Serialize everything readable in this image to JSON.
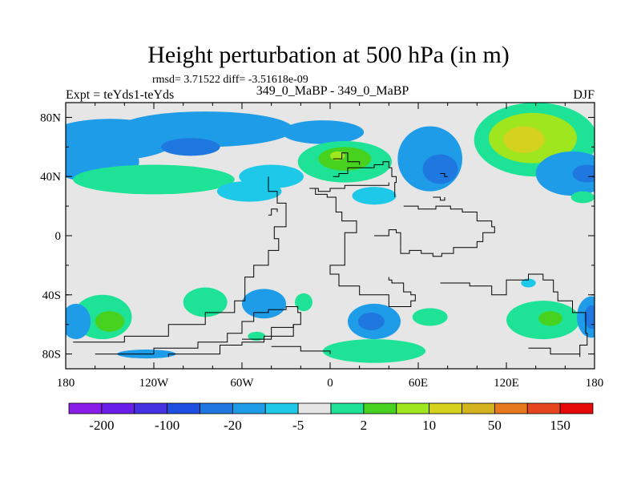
{
  "chart_data": {
    "type": "heatmap",
    "title": "Height perturbation at 500 hPa (in m)",
    "stats_line": "rmsd= 3.71522 diff= -3.51618e-09",
    "left_label": "Expt = teYds1-teYds",
    "center_label": "349_0_MaBP - 349_0_MaBP",
    "right_label": "DJF",
    "xlim": [
      -180,
      180
    ],
    "ylim": [
      -90,
      90
    ],
    "x_ticks": [
      {
        "value": -180,
        "label": "180"
      },
      {
        "value": -120,
        "label": "120W"
      },
      {
        "value": -60,
        "label": "60W"
      },
      {
        "value": 0,
        "label": "0"
      },
      {
        "value": 60,
        "label": "60E"
      },
      {
        "value": 120,
        "label": "120E"
      },
      {
        "value": 180,
        "label": "180"
      }
    ],
    "y_ticks": [
      {
        "value": 80,
        "label": "80N"
      },
      {
        "value": 40,
        "label": "40N"
      },
      {
        "value": 0,
        "label": "0"
      },
      {
        "value": -40,
        "label": "40S"
      },
      {
        "value": -80,
        "label": "80S"
      }
    ],
    "colorbar": {
      "colors": [
        "#8a1ee8",
        "#6a1fe8",
        "#4632e0",
        "#1f4fe0",
        "#1e78e0",
        "#1e9ce8",
        "#1ec8e8",
        "#e6e6e6",
        "#1ee396",
        "#46d21e",
        "#a0e61e",
        "#d4d21e",
        "#d4b41e",
        "#e6781e",
        "#e6461e",
        "#e60a0a"
      ],
      "labels": [
        {
          "boundary": 1,
          "label": "-200"
        },
        {
          "boundary": 3,
          "label": "-100"
        },
        {
          "boundary": 5,
          "label": "-20"
        },
        {
          "boundary": 7,
          "label": "-5"
        },
        {
          "boundary": 9,
          "label": "2"
        },
        {
          "boundary": 11,
          "label": "10"
        },
        {
          "boundary": 13,
          "label": "50"
        },
        {
          "boundary": 15,
          "label": "150"
        }
      ]
    },
    "background_level": "#e6e6e6",
    "anomalies": [
      {
        "lon": -150,
        "lat": 65,
        "rx": 45,
        "ry": 14,
        "level": 5
      },
      {
        "lon": -160,
        "lat": 50,
        "rx": 30,
        "ry": 14,
        "level": 5
      },
      {
        "lon": -120,
        "lat": 38,
        "rx": 55,
        "ry": 10,
        "level": 8
      },
      {
        "lon": -40,
        "lat": 40,
        "rx": 22,
        "ry": 8,
        "level": 6
      },
      {
        "lon": -85,
        "lat": 72,
        "rx": 60,
        "ry": 12,
        "level": 5
      },
      {
        "lon": -95,
        "lat": 60,
        "rx": 20,
        "ry": 6,
        "level": 4
      },
      {
        "lon": -5,
        "lat": 70,
        "rx": 28,
        "ry": 8,
        "level": 5
      },
      {
        "lon": 10,
        "lat": 50,
        "rx": 32,
        "ry": 14,
        "level": 8
      },
      {
        "lon": 10,
        "lat": 52,
        "rx": 18,
        "ry": 8,
        "level": 9
      },
      {
        "lon": 5,
        "lat": 54,
        "rx": 5,
        "ry": 3,
        "level": 10
      },
      {
        "lon": -55,
        "lat": 30,
        "rx": 22,
        "ry": 7,
        "level": 6
      },
      {
        "lon": 30,
        "lat": 27,
        "rx": 15,
        "ry": 6,
        "level": 6
      },
      {
        "lon": 68,
        "lat": 52,
        "rx": 22,
        "ry": 22,
        "level": 5
      },
      {
        "lon": 75,
        "lat": 45,
        "rx": 12,
        "ry": 10,
        "level": 4
      },
      {
        "lon": 140,
        "lat": 65,
        "rx": 42,
        "ry": 25,
        "level": 8
      },
      {
        "lon": 138,
        "lat": 66,
        "rx": 30,
        "ry": 17,
        "level": 10
      },
      {
        "lon": 132,
        "lat": 65,
        "rx": 14,
        "ry": 9,
        "level": 11
      },
      {
        "lon": 165,
        "lat": 42,
        "rx": 25,
        "ry": 15,
        "level": 5
      },
      {
        "lon": 175,
        "lat": 42,
        "rx": 10,
        "ry": 6,
        "level": 4
      },
      {
        "lon": 172,
        "lat": 26,
        "rx": 8,
        "ry": 4,
        "level": 8
      },
      {
        "lon": -155,
        "lat": -55,
        "rx": 20,
        "ry": 15,
        "level": 8
      },
      {
        "lon": -150,
        "lat": -58,
        "rx": 10,
        "ry": 7,
        "level": 9
      },
      {
        "lon": -173,
        "lat": -58,
        "rx": 10,
        "ry": 12,
        "level": 5
      },
      {
        "lon": -85,
        "lat": -45,
        "rx": 15,
        "ry": 10,
        "level": 8
      },
      {
        "lon": -125,
        "lat": -80,
        "rx": 20,
        "ry": 3,
        "level": 5
      },
      {
        "lon": -45,
        "lat": -46,
        "rx": 15,
        "ry": 10,
        "level": 5
      },
      {
        "lon": -50,
        "lat": -68,
        "rx": 6,
        "ry": 3,
        "level": 8
      },
      {
        "lon": -18,
        "lat": -45,
        "rx": 6,
        "ry": 6,
        "level": 8
      },
      {
        "lon": 30,
        "lat": -58,
        "rx": 18,
        "ry": 12,
        "level": 5
      },
      {
        "lon": 28,
        "lat": -58,
        "rx": 9,
        "ry": 6,
        "level": 4
      },
      {
        "lon": 30,
        "lat": -78,
        "rx": 35,
        "ry": 8,
        "level": 8
      },
      {
        "lon": 68,
        "lat": -55,
        "rx": 12,
        "ry": 6,
        "level": 8
      },
      {
        "lon": 135,
        "lat": -32,
        "rx": 5,
        "ry": 3,
        "level": 6
      },
      {
        "lon": 145,
        "lat": -57,
        "rx": 25,
        "ry": 13,
        "level": 8
      },
      {
        "lon": 150,
        "lat": -56,
        "rx": 8,
        "ry": 5,
        "level": 9
      },
      {
        "lon": 178,
        "lat": -55,
        "rx": 10,
        "ry": 14,
        "level": 5
      },
      {
        "lon": 178,
        "lat": -55,
        "rx": 5,
        "ry": 8,
        "level": 4
      }
    ],
    "boundaries": [
      [
        [
          -175,
          -72
        ],
        [
          -140,
          -68
        ],
        [
          -110,
          -60
        ],
        [
          -85,
          -52
        ],
        [
          -65,
          -44
        ],
        [
          -58,
          -36
        ],
        [
          -58,
          -28
        ],
        [
          -52,
          -20
        ],
        [
          -42,
          -10
        ],
        [
          -35,
          -2
        ],
        [
          -38,
          6
        ],
        [
          -30,
          12
        ],
        [
          -30,
          22
        ],
        [
          -36,
          30
        ],
        [
          -42,
          40
        ]
      ],
      [
        [
          -160,
          -80
        ],
        [
          -120,
          -76
        ],
        [
          -90,
          -72
        ],
        [
          -70,
          -66
        ],
        [
          -60,
          -58
        ],
        [
          -52,
          -52
        ],
        [
          -42,
          -50
        ],
        [
          -30,
          -48
        ],
        [
          -22,
          -52
        ],
        [
          -20,
          -60
        ],
        [
          -25,
          -68
        ],
        [
          -45,
          -72
        ],
        [
          -60,
          -74
        ],
        [
          -75,
          -80
        ],
        [
          -110,
          -82
        ]
      ],
      [
        [
          -60,
          -70
        ],
        [
          -40,
          -62
        ],
        [
          -25,
          -60
        ]
      ],
      [
        [
          -40,
          -75
        ],
        [
          -20,
          -78
        ],
        [
          0,
          -80
        ]
      ],
      [
        [
          -42,
          14
        ],
        [
          -40,
          18
        ],
        [
          -36,
          16
        ]
      ],
      [
        [
          -14,
          32
        ],
        [
          -10,
          28
        ],
        [
          -2,
          26
        ],
        [
          4,
          16
        ],
        [
          8,
          10
        ],
        [
          18,
          2
        ],
        [
          10,
          -10
        ],
        [
          10,
          -20
        ],
        [
          0,
          -26
        ],
        [
          6,
          -34
        ],
        [
          20,
          -40
        ],
        [
          40,
          -48
        ],
        [
          55,
          -44
        ],
        [
          58,
          -40
        ],
        [
          55,
          -38
        ],
        [
          50,
          -32
        ],
        [
          42,
          -30
        ],
        [
          40,
          -28
        ]
      ],
      [
        [
          -14,
          32
        ],
        [
          -8,
          30
        ],
        [
          -4,
          30
        ],
        [
          0,
          32
        ],
        [
          10,
          34
        ],
        [
          30,
          34
        ],
        [
          40,
          36
        ]
      ],
      [
        [
          2,
          40
        ],
        [
          6,
          42
        ],
        [
          12,
          46
        ],
        [
          20,
          46
        ],
        [
          30,
          48
        ],
        [
          36,
          50
        ],
        [
          40,
          46
        ],
        [
          42,
          40
        ],
        [
          45,
          36
        ],
        [
          44,
          26
        ]
      ],
      [
        [
          2,
          52
        ],
        [
          8,
          56
        ],
        [
          12,
          50
        ],
        [
          20,
          48
        ]
      ],
      [
        [
          50,
          20
        ],
        [
          60,
          18
        ],
        [
          72,
          20
        ],
        [
          82,
          18
        ],
        [
          90,
          16
        ],
        [
          100,
          10
        ],
        [
          110,
          6
        ],
        [
          112,
          2
        ],
        [
          104,
          -4
        ],
        [
          100,
          -8
        ],
        [
          90,
          -8
        ],
        [
          84,
          -12
        ],
        [
          76,
          -14
        ],
        [
          70,
          -12
        ],
        [
          62,
          -10
        ],
        [
          54,
          -12
        ],
        [
          48,
          -8
        ]
      ],
      [
        [
          30,
          0
        ],
        [
          40,
          4
        ],
        [
          45,
          2
        ],
        [
          48,
          -8
        ]
      ],
      [
        [
          75,
          -32
        ],
        [
          95,
          -34
        ],
        [
          110,
          -40
        ],
        [
          120,
          -30
        ],
        [
          135,
          -26
        ],
        [
          145,
          -30
        ],
        [
          152,
          -38
        ],
        [
          155,
          -44
        ],
        [
          165,
          -52
        ],
        [
          174,
          -66
        ],
        [
          175,
          -74
        ],
        [
          170,
          -80
        ]
      ],
      [
        [
          135,
          -76
        ],
        [
          150,
          -80
        ],
        [
          160,
          -80
        ],
        [
          170,
          -82
        ]
      ],
      [
        [
          70,
          26
        ],
        [
          75,
          24
        ],
        [
          78,
          26
        ]
      ],
      [
        [
          75,
          42
        ],
        [
          78,
          40
        ],
        [
          80,
          40
        ],
        [
          78,
          42
        ],
        [
          75,
          42
        ]
      ]
    ]
  }
}
